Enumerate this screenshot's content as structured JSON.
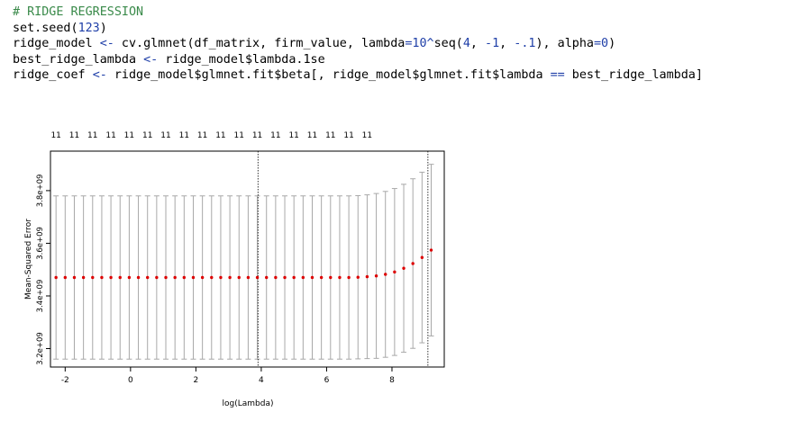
{
  "code_lines": [
    [
      {
        "t": "# RIDGE REGRESSION",
        "c": "comment"
      }
    ],
    [
      {
        "t": "set.seed(",
        "c": "txt"
      },
      {
        "t": "123",
        "c": "num"
      },
      {
        "t": ")",
        "c": "txt"
      }
    ],
    [
      {
        "t": "ridge_model ",
        "c": "txt"
      },
      {
        "t": "<-",
        "c": "op"
      },
      {
        "t": " cv.glmnet(df_matrix, firm_value, lambda",
        "c": "txt"
      },
      {
        "t": "=",
        "c": "op"
      },
      {
        "t": "10",
        "c": "num"
      },
      {
        "t": "^",
        "c": "op"
      },
      {
        "t": "seq(",
        "c": "txt"
      },
      {
        "t": "4",
        "c": "num"
      },
      {
        "t": ", ",
        "c": "txt"
      },
      {
        "t": "-1",
        "c": "num"
      },
      {
        "t": ", ",
        "c": "txt"
      },
      {
        "t": "-.1",
        "c": "num"
      },
      {
        "t": "), alpha",
        "c": "txt"
      },
      {
        "t": "=",
        "c": "op"
      },
      {
        "t": "0",
        "c": "num"
      },
      {
        "t": ")",
        "c": "txt"
      }
    ],
    [
      {
        "t": "best_ridge_lambda ",
        "c": "txt"
      },
      {
        "t": "<-",
        "c": "op"
      },
      {
        "t": " ridge_model$lambda.1se",
        "c": "txt"
      }
    ],
    [
      {
        "t": "ridge_coef ",
        "c": "txt"
      },
      {
        "t": "<-",
        "c": "op"
      },
      {
        "t": " ridge_model$glmnet.fit$beta[, ridge_model$glmnet.fit$lambda ",
        "c": "txt"
      },
      {
        "t": "==",
        "c": "op"
      },
      {
        "t": " best_ridge_lambda]",
        "c": "txt"
      }
    ]
  ],
  "colors": {
    "comment": "#3a8a4a",
    "number": "#1f3fa8",
    "points": "#dd0000",
    "errorbar": "#a8a8a8"
  },
  "chart_data": {
    "type": "scatter",
    "xlabel": "log(Lambda)",
    "ylabel": "Mean-Squared Error",
    "x_ticks": [
      -2,
      0,
      2,
      4,
      6,
      8
    ],
    "y_ticks": [
      3200000000,
      3400000000,
      3600000000,
      3800000000
    ],
    "y_tick_labels": [
      "3.2e+09",
      "3.4e+09",
      "3.6e+09",
      "3.8e+09"
    ],
    "xlim": [
      -2.45,
      9.6
    ],
    "ylim": [
      3130000000,
      3950000000
    ],
    "top_axis_labels": [
      "11",
      "11",
      "11",
      "11",
      "11",
      "11",
      "11",
      "11",
      "11",
      "11",
      "11",
      "11",
      "11",
      "11",
      "11",
      "11",
      "11",
      "11"
    ],
    "top_axis_every": 2,
    "vlines_x": [
      3.9,
      9.1
    ],
    "x": [
      -2.28,
      -2.0,
      -1.72,
      -1.44,
      -1.16,
      -0.88,
      -0.6,
      -0.32,
      -0.04,
      0.24,
      0.52,
      0.8,
      1.08,
      1.36,
      1.64,
      1.92,
      2.2,
      2.48,
      2.76,
      3.04,
      3.32,
      3.6,
      3.88,
      4.16,
      4.44,
      4.72,
      5.0,
      5.28,
      5.56,
      5.84,
      6.12,
      6.4,
      6.68,
      6.96,
      7.24,
      7.52,
      7.8,
      8.08,
      8.36,
      8.64,
      8.92,
      9.2
    ],
    "mean": [
      3470000000,
      3470000000,
      3470000000,
      3470000000,
      3470000000,
      3470000000,
      3470000000,
      3470000000,
      3470000000,
      3470000000,
      3470000000,
      3470000000,
      3470000000,
      3470000000,
      3470000000,
      3470000000,
      3470000000,
      3470000000,
      3470000000,
      3470000000,
      3470000000,
      3470000000,
      3470000000,
      3470000000,
      3470000000,
      3470000000,
      3470000000,
      3470000000,
      3470000000,
      3470000000,
      3470000000,
      3470000000,
      3470000000,
      3471000000,
      3473000000,
      3476000000,
      3482000000,
      3491000000,
      3505000000,
      3523000000,
      3546000000,
      3574000000
    ],
    "upper": [
      3780000000,
      3780000000,
      3780000000,
      3780000000,
      3780000000,
      3780000000,
      3780000000,
      3780000000,
      3780000000,
      3780000000,
      3780000000,
      3780000000,
      3780000000,
      3780000000,
      3780000000,
      3780000000,
      3780000000,
      3780000000,
      3780000000,
      3780000000,
      3780000000,
      3780000000,
      3780000000,
      3780000000,
      3780000000,
      3780000000,
      3780000000,
      3780000000,
      3780000000,
      3780000000,
      3780000000,
      3780000000,
      3780000000,
      3781000000,
      3784000000,
      3789000000,
      3797000000,
      3808000000,
      3824000000,
      3845000000,
      3870000000,
      3900000000
    ],
    "lower": [
      3160000000,
      3160000000,
      3160000000,
      3160000000,
      3160000000,
      3160000000,
      3160000000,
      3160000000,
      3160000000,
      3160000000,
      3160000000,
      3160000000,
      3160000000,
      3160000000,
      3160000000,
      3160000000,
      3160000000,
      3160000000,
      3160000000,
      3160000000,
      3160000000,
      3160000000,
      3160000000,
      3160000000,
      3160000000,
      3160000000,
      3160000000,
      3160000000,
      3160000000,
      3160000000,
      3160000000,
      3160000000,
      3160000000,
      3161000000,
      3162000000,
      3163000000,
      3167000000,
      3174000000,
      3186000000,
      3201000000,
      3222000000,
      3248000000
    ],
    "grid": false
  }
}
